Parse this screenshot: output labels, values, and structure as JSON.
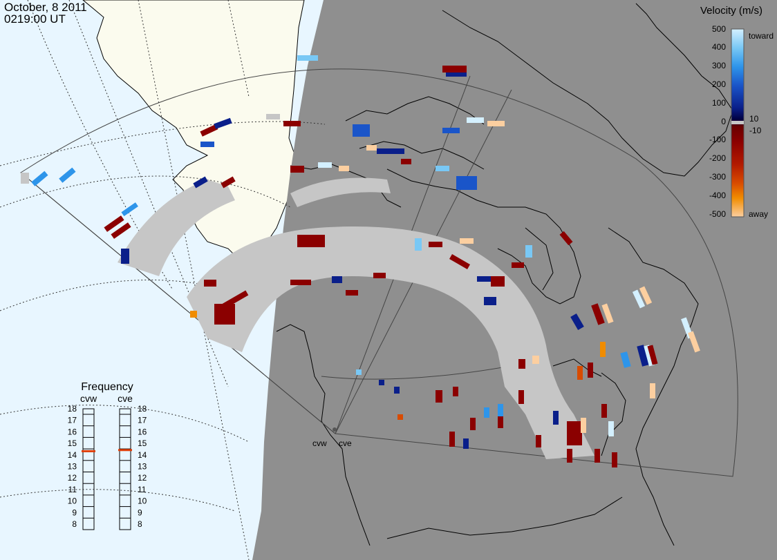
{
  "header": {
    "date": "October, 8 2011",
    "time": "0219:00 UT"
  },
  "colors": {
    "sunlit": "#e8f6ff",
    "sunlit_land": "#fbfbee",
    "night": "#8f8f8f",
    "coast": "#000000",
    "ground_scatter": "#c6c6c6"
  },
  "radars": [
    {
      "label": "cvw"
    },
    {
      "label": "cve"
    }
  ],
  "velocity_scale": {
    "title": "Velocity (m/s)",
    "ticks": [
      "500",
      "400",
      "300",
      "200",
      "100",
      "0",
      "-100",
      "-200",
      "-300",
      "-400",
      "-500"
    ],
    "near_zero": [
      "10",
      "-10"
    ],
    "toward_label": "toward",
    "away_label": "away",
    "stops": [
      "#d4f0ff",
      "#79c8f5",
      "#2e95ea",
      "#1a55c9",
      "#0a1f8a",
      "#000044",
      "#6a0000",
      "#8b0000",
      "#b21a00",
      "#d84b00",
      "#f08c00",
      "#fccfa0"
    ]
  },
  "frequency": {
    "title": "Frequency",
    "left_label": "cvw",
    "right_label": "cve",
    "ticks": [
      "18",
      "17",
      "16",
      "15",
      "14",
      "13",
      "12",
      "11",
      "10",
      "9",
      "8"
    ],
    "cvw_mhz": 14.8,
    "cve_mhz": 14.9,
    "marker_color": "#e0400b"
  }
}
